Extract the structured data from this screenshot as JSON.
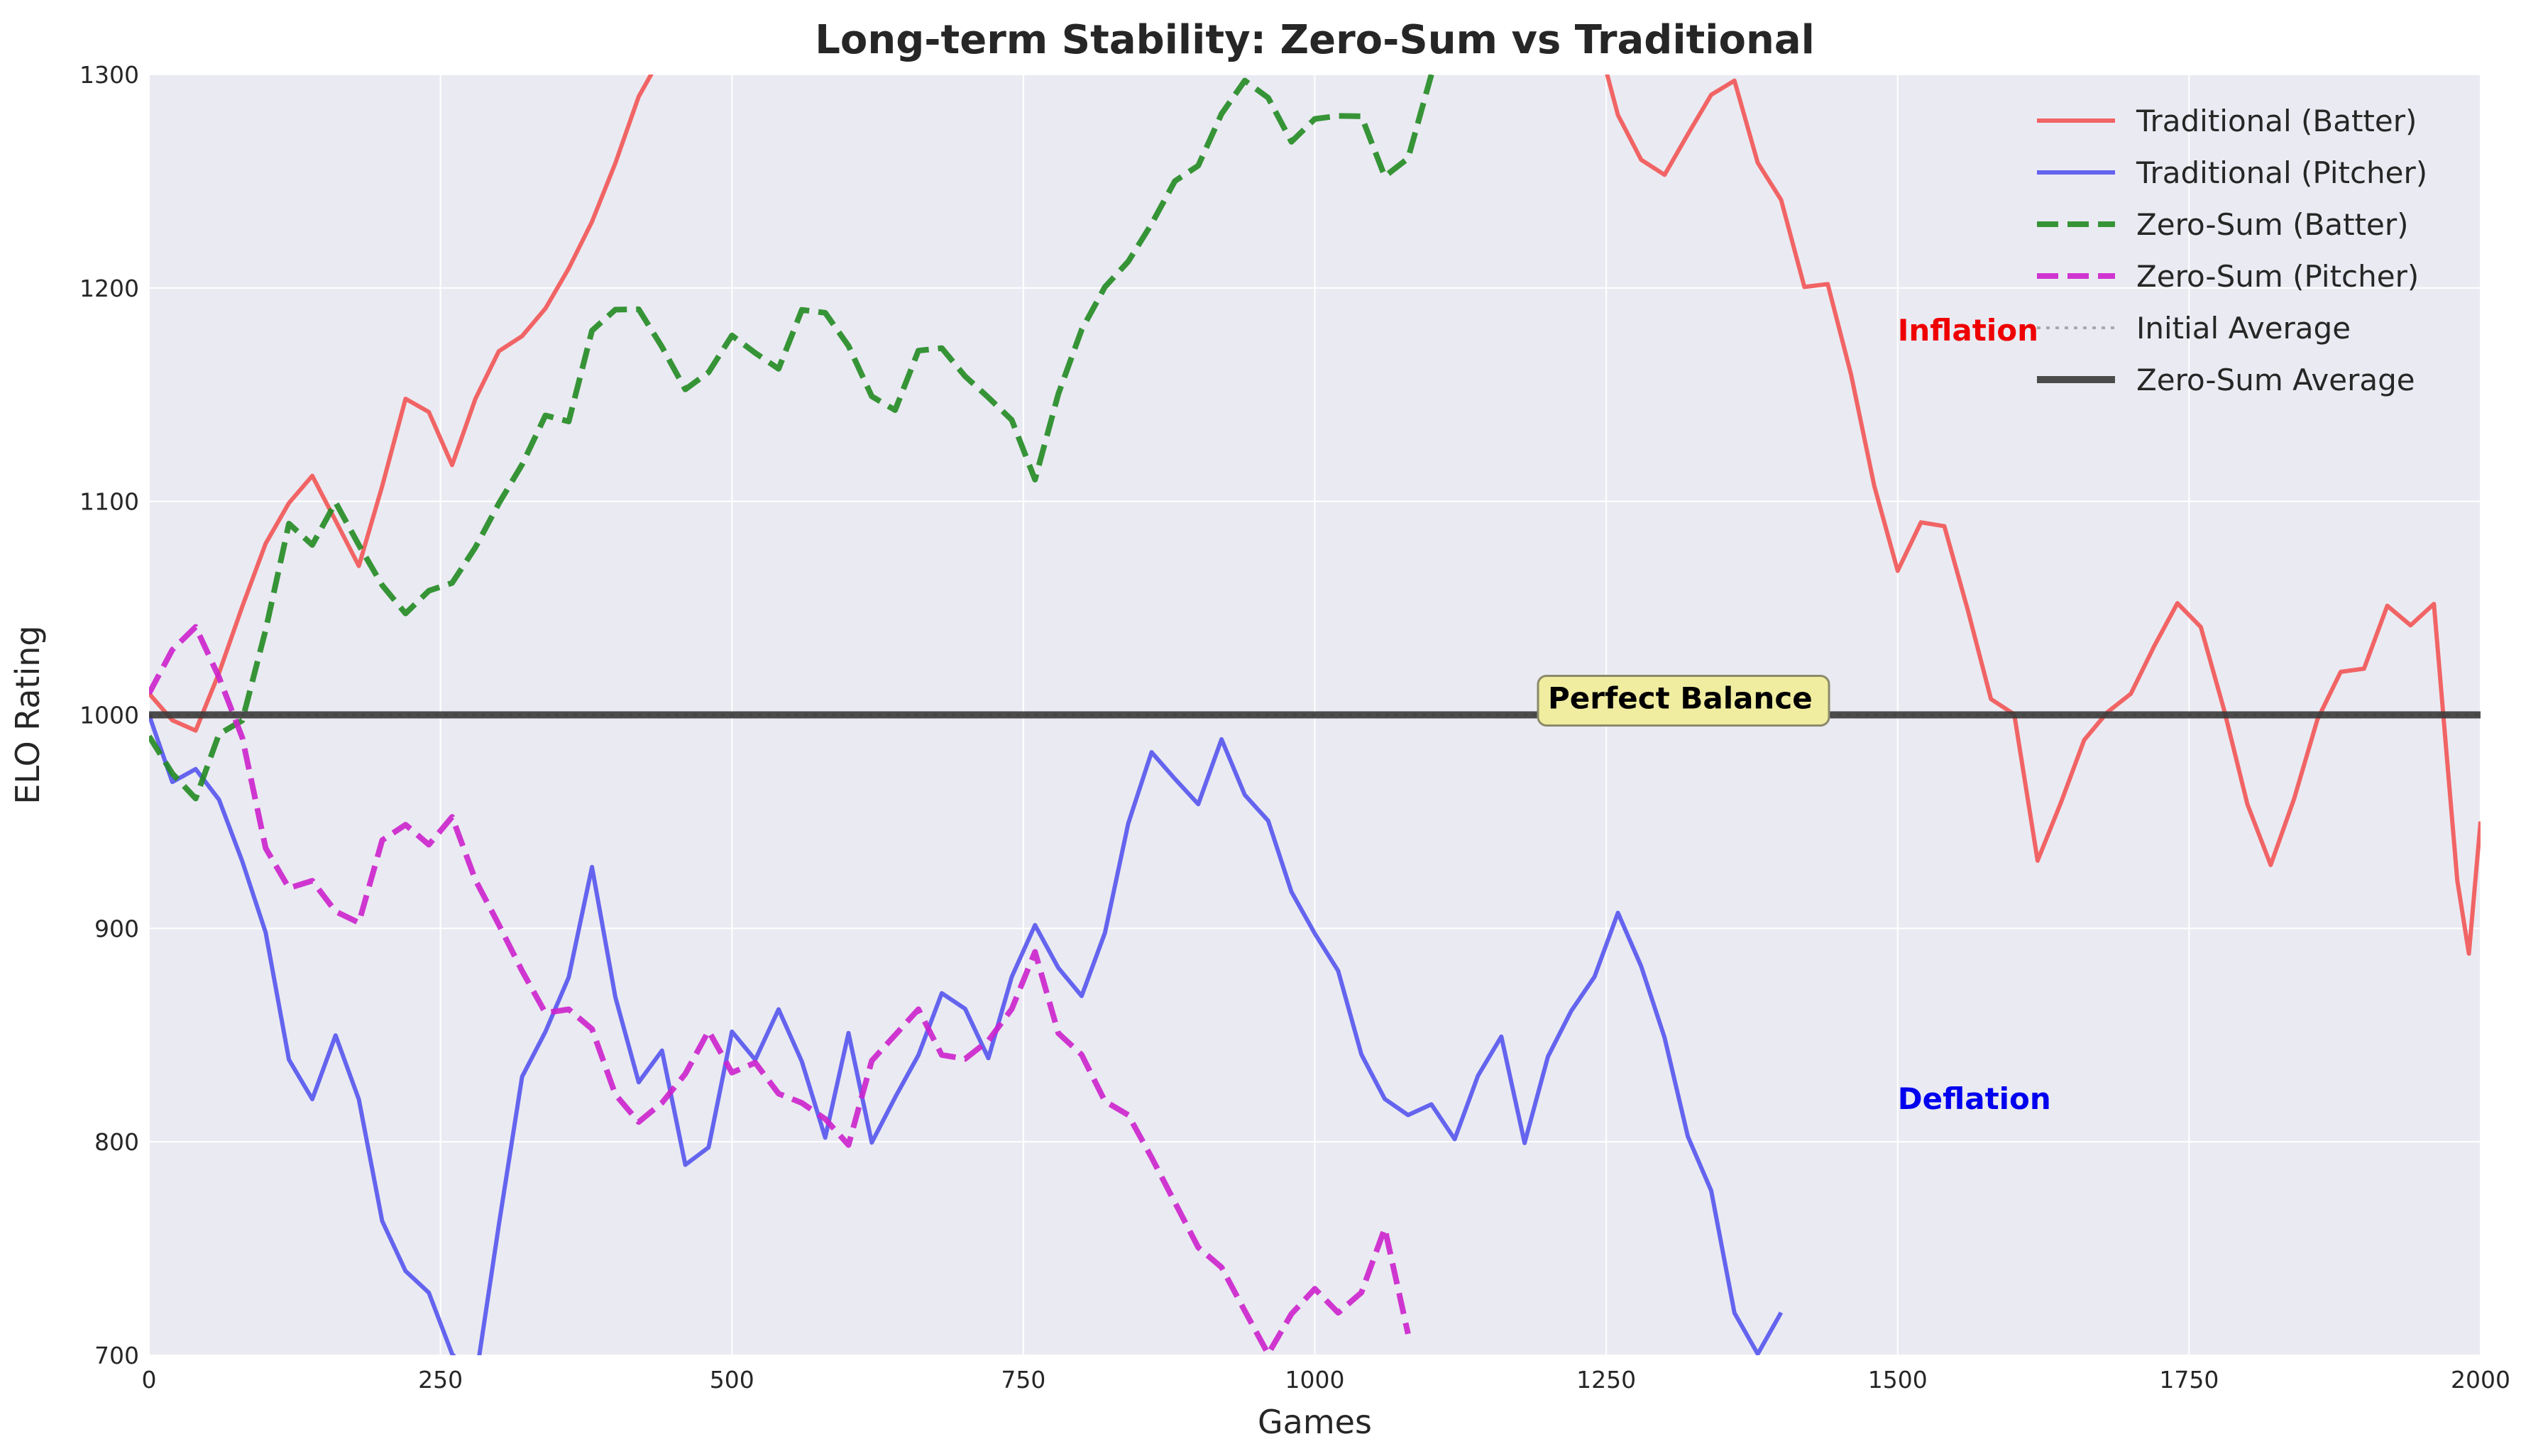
{
  "chart_data": {
    "type": "line",
    "title": "Long-term Stability: Zero-Sum vs Traditional",
    "xlabel": "Games",
    "ylabel": "ELO Rating",
    "xlim": [
      0,
      2000
    ],
    "ylim": [
      700,
      1300
    ],
    "xticks": [
      0,
      250,
      500,
      750,
      1000,
      1250,
      1500,
      1750,
      2000
    ],
    "yticks": [
      700,
      800,
      900,
      1000,
      1100,
      1200,
      1300
    ],
    "grid": true,
    "legend_position": "top-right",
    "series": [
      {
        "name": "Traditional (Batter)",
        "color": "#f25555",
        "style": "solid",
        "x": [
          0,
          20,
          40,
          60,
          80,
          100,
          120,
          140,
          160,
          180,
          200,
          220,
          240,
          260,
          280,
          300,
          320,
          340,
          360,
          380,
          400,
          420,
          440,
          1180,
          1240,
          1260,
          1280,
          1300,
          1320,
          1340,
          1360,
          1380,
          1400,
          1420,
          1440,
          1460,
          1480,
          1500,
          1520,
          1540,
          1560,
          1580,
          1600,
          1620,
          1640,
          1660,
          1680,
          1700,
          1720,
          1740,
          1760,
          1780,
          1800,
          1820,
          1840,
          1860,
          1880,
          1900,
          1920,
          1940,
          1960,
          1980,
          1990,
          2000
        ],
        "y": [
          1010,
          1000,
          990,
          1020,
          1050,
          1080,
          1100,
          1110,
          1090,
          1070,
          1110,
          1150,
          1140,
          1120,
          1150,
          1170,
          1180,
          1190,
          1210,
          1230,
          1260,
          1290,
          1310,
          1310,
          1320,
          1280,
          1260,
          1250,
          1270,
          1290,
          1300,
          1260,
          1240,
          1200,
          1200,
          1160,
          1110,
          1070,
          1090,
          1090,
          1050,
          1010,
          1000,
          930,
          960,
          990,
          1000,
          1010,
          1030,
          1050,
          1040,
          1000,
          960,
          930,
          960,
          1000,
          1020,
          1020,
          1050,
          1040,
          1050,
          920,
          890,
          950
        ]
      },
      {
        "name": "Traditional (Pitcher)",
        "color": "#5555ee",
        "style": "solid",
        "x": [
          0,
          20,
          40,
          60,
          80,
          100,
          120,
          140,
          160,
          180,
          200,
          220,
          240,
          260,
          280,
          300,
          320,
          340,
          360,
          380,
          400,
          420,
          440,
          460,
          480,
          500,
          520,
          540,
          560,
          580,
          600,
          620,
          640,
          660,
          680,
          700,
          720,
          740,
          760,
          780,
          800,
          820,
          840,
          860,
          880,
          900,
          920,
          940,
          960,
          980,
          1000,
          1020,
          1040,
          1060,
          1080,
          1100,
          1120,
          1140,
          1160,
          1180,
          1200,
          1220,
          1240,
          1260,
          1280,
          1300,
          1320,
          1340,
          1360,
          1380,
          1400
        ],
        "y": [
          1000,
          970,
          975,
          960,
          930,
          900,
          840,
          820,
          850,
          820,
          760,
          740,
          730,
          700,
          690,
          760,
          830,
          850,
          880,
          930,
          870,
          830,
          840,
          790,
          800,
          850,
          840,
          860,
          840,
          800,
          850,
          800,
          820,
          840,
          870,
          860,
          840,
          880,
          900,
          880,
          870,
          900,
          950,
          980,
          970,
          960,
          990,
          960,
          950,
          920,
          900,
          880,
          840,
          820,
          810,
          820,
          800,
          830,
          850,
          800,
          840,
          860,
          880,
          910,
          880,
          850,
          800,
          780,
          720,
          700,
          720
        ]
      },
      {
        "name": "Zero-Sum (Batter)",
        "color": "#228b22",
        "style": "dashed",
        "x": [
          0,
          20,
          40,
          60,
          80,
          100,
          120,
          140,
          160,
          180,
          200,
          220,
          240,
          260,
          280,
          300,
          320,
          340,
          360,
          380,
          400,
          420,
          440,
          460,
          480,
          500,
          520,
          540,
          560,
          580,
          600,
          620,
          640,
          660,
          680,
          700,
          720,
          740,
          760,
          780,
          800,
          820,
          840,
          860,
          880,
          900,
          920,
          940,
          960,
          980,
          1000,
          1020,
          1040,
          1060,
          1080,
          1100
        ],
        "y": [
          990,
          970,
          960,
          990,
          1000,
          1040,
          1090,
          1080,
          1100,
          1080,
          1060,
          1050,
          1060,
          1060,
          1080,
          1100,
          1120,
          1140,
          1140,
          1180,
          1190,
          1190,
          1170,
          1150,
          1160,
          1180,
          1170,
          1160,
          1190,
          1190,
          1170,
          1150,
          1140,
          1170,
          1170,
          1160,
          1150,
          1140,
          1110,
          1150,
          1180,
          1200,
          1210,
          1230,
          1250,
          1260,
          1280,
          1300,
          1290,
          1270,
          1280,
          1280,
          1280,
          1250,
          1260,
          1300
        ]
      },
      {
        "name": "Zero-Sum (Pitcher)",
        "color": "#cc22cc",
        "style": "dashed",
        "x": [
          0,
          20,
          40,
          60,
          80,
          100,
          120,
          140,
          160,
          180,
          200,
          220,
          240,
          260,
          280,
          300,
          320,
          340,
          360,
          380,
          400,
          420,
          440,
          460,
          480,
          500,
          520,
          540,
          560,
          580,
          600,
          620,
          640,
          660,
          680,
          700,
          720,
          740,
          760,
          780,
          800,
          820,
          840,
          860,
          880,
          900,
          920,
          940,
          960,
          980,
          1000,
          1020,
          1040,
          1060,
          1080
        ],
        "y": [
          1010,
          1030,
          1040,
          1020,
          990,
          940,
          920,
          920,
          910,
          900,
          940,
          950,
          940,
          950,
          920,
          900,
          880,
          860,
          860,
          850,
          820,
          810,
          820,
          830,
          850,
          830,
          840,
          820,
          820,
          810,
          800,
          840,
          850,
          860,
          840,
          840,
          850,
          860,
          890,
          850,
          840,
          820,
          810,
          790,
          770,
          750,
          740,
          720,
          700,
          720,
          730,
          720,
          730,
          760,
          710
        ]
      },
      {
        "name": "Initial Average",
        "color": "#999999",
        "style": "dotted",
        "x": [
          0,
          2000
        ],
        "y": [
          1000,
          1000
        ]
      },
      {
        "name": "Zero-Sum Average",
        "color": "#3a3a3a",
        "style": "solid-thick",
        "x": [
          0,
          2000
        ],
        "y": [
          1000,
          1000
        ]
      }
    ],
    "annotations": [
      {
        "text": "Inflation",
        "x": 1500,
        "y": 1180,
        "color": "#ee0000"
      },
      {
        "text": "Deflation",
        "x": 1500,
        "y": 820,
        "color": "#0000ee"
      },
      {
        "text": "Perfect Balance",
        "x": 1200,
        "y": 1005,
        "color": "#000000"
      }
    ]
  }
}
